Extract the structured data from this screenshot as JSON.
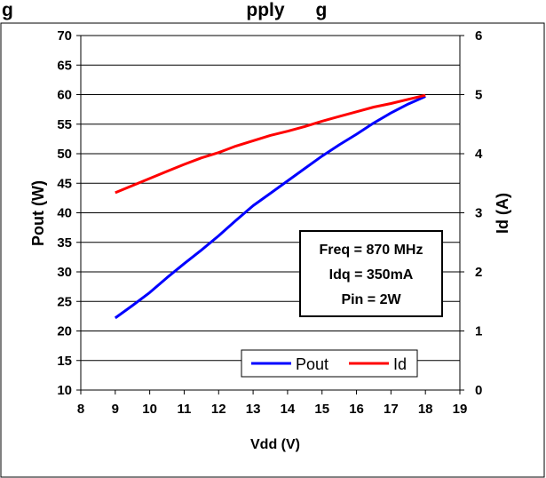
{
  "chart_data": {
    "type": "line",
    "title": "g                                             pply      g",
    "xlabel": "Vdd (V)",
    "ylabel": "Pout (W)",
    "y2label": "Id (A)",
    "xlim": [
      8,
      19
    ],
    "ylim": [
      10,
      70
    ],
    "y2lim": [
      0,
      6
    ],
    "xticks": [
      "8",
      "9",
      "10",
      "11",
      "12",
      "13",
      "14",
      "15",
      "16",
      "17",
      "18",
      "19"
    ],
    "yticks": [
      "10",
      "15",
      "20",
      "25",
      "30",
      "35",
      "40",
      "45",
      "50",
      "55",
      "60",
      "65",
      "70"
    ],
    "y2ticks": [
      "0",
      "1",
      "2",
      "3",
      "4",
      "5",
      "6"
    ],
    "grid": "horizontal",
    "legend_position": "bottom-right",
    "series": [
      {
        "name": "Pout",
        "axis": "left",
        "color": "#0000ff",
        "x": [
          9,
          9.5,
          10,
          10.5,
          11,
          11.5,
          12,
          12.5,
          13,
          13.5,
          14,
          14.5,
          15,
          15.5,
          16,
          16.5,
          17,
          17.5,
          18
        ],
        "y": [
          22.2,
          24.3,
          26.5,
          29.0,
          31.4,
          33.7,
          36.1,
          38.7,
          41.2,
          43.3,
          45.4,
          47.5,
          49.6,
          51.5,
          53.3,
          55.2,
          56.9,
          58.4,
          59.7
        ]
      },
      {
        "name": "Id",
        "axis": "right",
        "color": "#ff0000",
        "x": [
          9,
          9.5,
          10,
          10.5,
          11,
          11.5,
          12,
          12.5,
          13,
          13.5,
          14,
          14.5,
          15,
          15.5,
          16,
          16.5,
          17,
          17.5,
          18
        ],
        "y": [
          3.34,
          3.46,
          3.58,
          3.7,
          3.82,
          3.93,
          4.02,
          4.13,
          4.22,
          4.31,
          4.38,
          4.46,
          4.55,
          4.63,
          4.71,
          4.79,
          4.85,
          4.92,
          4.99
        ]
      }
    ],
    "annotation": [
      "Freq = 870 MHz",
      "Idq = 350mA",
      "Pin = 2W"
    ]
  }
}
